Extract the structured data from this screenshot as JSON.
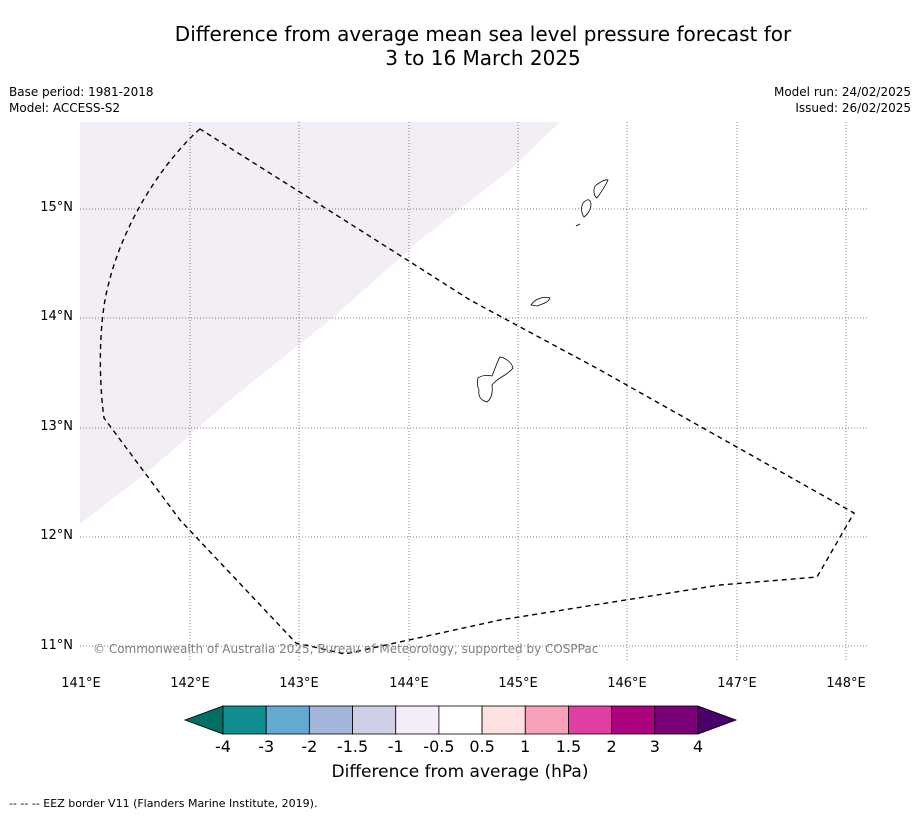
{
  "title_line1": "Difference from average mean sea level pressure forecast for",
  "title_line2": "3 to 16 March 2025",
  "meta_left": {
    "base_period": "Base period: 1981-2018",
    "model": "Model: ACCESS-S2"
  },
  "meta_right": {
    "model_run": "Model run: 24/02/2025",
    "issued": "Issued: 26/02/2025"
  },
  "map": {
    "lat_labels": [
      "15°N",
      "14°N",
      "13°N",
      "12°N",
      "11°N"
    ],
    "lon_labels": [
      "141°E",
      "142°E",
      "143°E",
      "144°E",
      "145°E",
      "146°E",
      "147°E",
      "148°E"
    ],
    "copyright": "© Commonwealth of Australia 2025, Bureau of Meteorology, supported by COSPPac",
    "shading_color": "#f3edf6",
    "border_style": "dashed"
  },
  "colorbar": {
    "title": "Difference from average (hPa)",
    "tick_labels": [
      "-4",
      "-3",
      "-2",
      "-1.5",
      "-1",
      "-0.5",
      "0.5",
      "1",
      "1.5",
      "2",
      "3",
      "4"
    ],
    "colors": [
      "#0f8d8f",
      "#64a9d2",
      "#a3b5d8",
      "#cfcfe6",
      "#f4ecf6",
      "#ffffff",
      "#fde0e0",
      "#f8a0b8",
      "#de3fa0",
      "#ad0280",
      "#7a0177"
    ],
    "low_extend_color": "#016f66",
    "high_extend_color": "#4a006a"
  },
  "footer": "--  --  -- EEZ border V11 (Flanders Marine Institute, 2019)."
}
